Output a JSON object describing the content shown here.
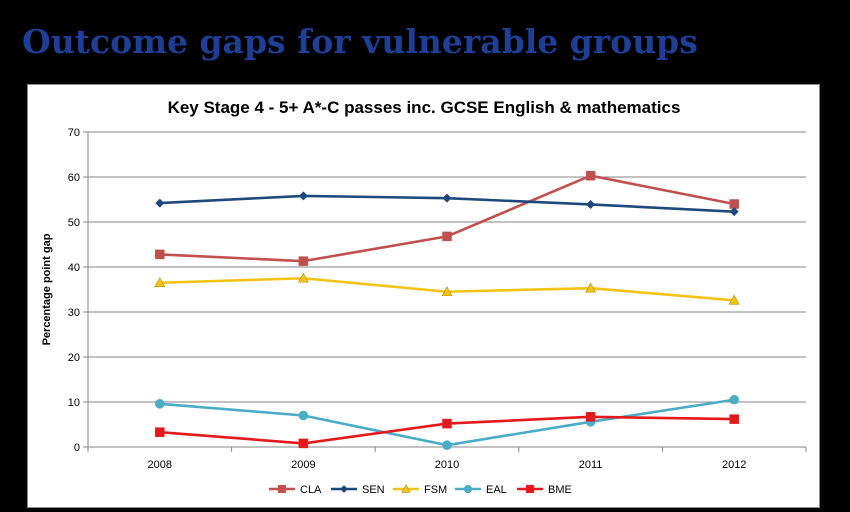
{
  "slide": {
    "title": "Outcome gaps for vulnerable groups"
  },
  "chart_data": {
    "type": "line",
    "title": "Key Stage 4 - 5+ A*-C passes inc. GCSE English & mathematics",
    "xlabel": "",
    "ylabel": "Percentage point gap",
    "categories": [
      "2008",
      "2009",
      "2010",
      "2011",
      "2012"
    ],
    "ylim": [
      0,
      70
    ],
    "yticks": [
      0,
      10,
      20,
      30,
      40,
      50,
      60,
      70
    ],
    "grid": true,
    "legend": "bottom",
    "series": [
      {
        "name": "CLA",
        "color": "#c0504d",
        "marker": "square",
        "values": [
          42.8,
          41.3,
          46.8,
          60.3,
          54.0
        ]
      },
      {
        "name": "SEN",
        "color": "#1f497d",
        "marker": "diamond",
        "values": [
          54.2,
          55.8,
          55.3,
          53.9,
          52.3
        ]
      },
      {
        "name": "FSM",
        "color": "#f2c314",
        "marker": "triangle",
        "values": [
          36.5,
          37.5,
          34.5,
          35.3,
          32.6
        ]
      },
      {
        "name": "EAL",
        "color": "#4bacc6",
        "marker": "circle",
        "values": [
          9.6,
          7.0,
          0.4,
          5.6,
          10.5
        ]
      },
      {
        "name": "BME",
        "color": "#e31a1c",
        "marker": "square",
        "values": [
          3.3,
          0.8,
          5.2,
          6.7,
          6.2
        ]
      }
    ]
  }
}
